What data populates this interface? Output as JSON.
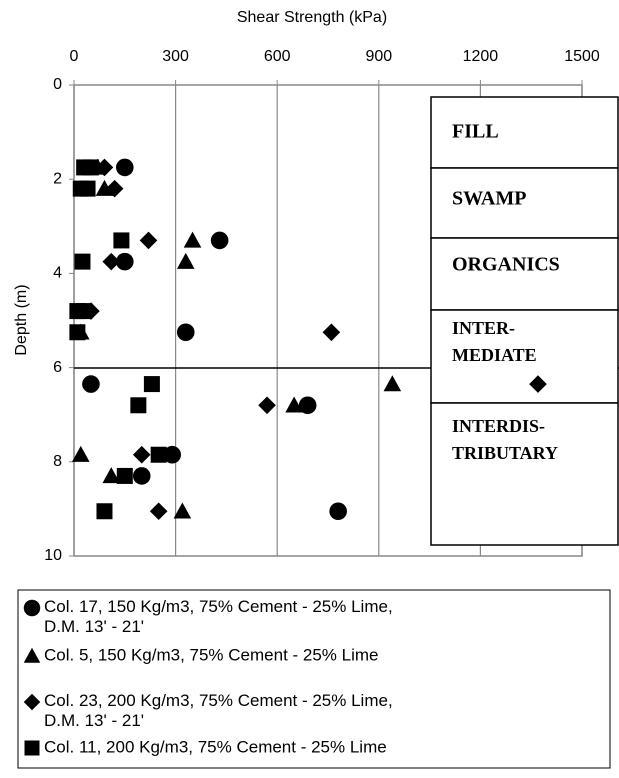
{
  "chart_data": {
    "type": "scatter",
    "x_label": "Shear Strength (kPa)",
    "y_label": "Depth (m)",
    "xlim": [
      0,
      1500
    ],
    "xticks": [
      0,
      300,
      600,
      900,
      1200,
      1500
    ],
    "ylim": [
      0,
      10
    ],
    "yticks": [
      0,
      2,
      4,
      6,
      8,
      10
    ],
    "y_inverted": true,
    "x_axis_top": true,
    "grid": "x",
    "strata": [
      "FILL",
      "SWAMP",
      "ORGANICS",
      "INTER-\nMEDIATE",
      "INTERDIS-\nTRIBUTARY"
    ],
    "series": [
      {
        "name": "Col. 17, 150 Kg/m3, 75% Cement - 25% Lime,\nD.M. 13' - 21'",
        "marker": "circle",
        "color": "#000000",
        "x": [
          150,
          430,
          150,
          330,
          50,
          690,
          290,
          200,
          780
        ],
        "values": [
          1.75,
          3.3,
          3.75,
          5.25,
          6.35,
          6.8,
          7.85,
          8.3,
          9.05
        ]
      },
      {
        "name": "Col. 5, 150 Kg/m3, 75% Cement - 25% Lime",
        "marker": "triangle",
        "color": "#000000",
        "x": [
          70,
          90,
          350,
          330,
          20,
          940,
          650,
          20,
          110,
          320
        ],
        "values": [
          1.75,
          2.2,
          3.3,
          3.75,
          5.25,
          6.35,
          6.8,
          7.85,
          8.3,
          9.05
        ]
      },
      {
        "name": "Col. 23, 200 Kg/m3, 75% Cement - 25% Lime,\nD.M. 13' - 21'",
        "marker": "diamond",
        "color": "#000000",
        "x": [
          90,
          120,
          220,
          110,
          50,
          760,
          1370,
          570,
          200,
          250
        ],
        "values": [
          1.75,
          2.2,
          3.3,
          3.75,
          4.8,
          5.25,
          6.35,
          6.8,
          7.85,
          9.05
        ]
      },
      {
        "name": "Col. 11, 200 Kg/m3, 75% Cement - 25% Lime",
        "marker": "square",
        "color": "#000000",
        "x": [
          30,
          50,
          20,
          40,
          140,
          25,
          10,
          30,
          10,
          230,
          190,
          250,
          150,
          90
        ],
        "values": [
          1.75,
          1.75,
          2.2,
          2.2,
          3.3,
          3.75,
          4.8,
          4.8,
          5.25,
          6.35,
          6.8,
          7.85,
          8.3,
          9.05
        ]
      }
    ]
  }
}
